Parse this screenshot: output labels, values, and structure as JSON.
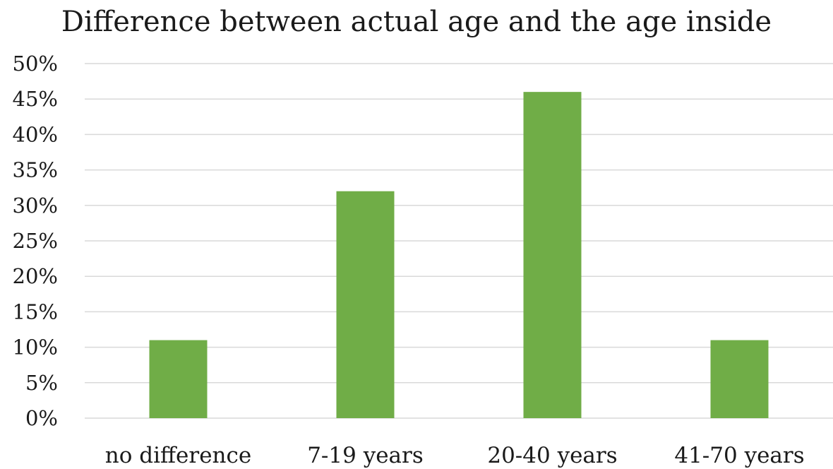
{
  "chart_data": {
    "type": "bar",
    "title": "Difference between actual age and the age inside",
    "xlabel": "",
    "ylabel": "",
    "categories": [
      "no difference",
      "7-19 years",
      "20-40 years",
      "41-70 years"
    ],
    "values": [
      11,
      32,
      46,
      11
    ],
    "value_format": "percent",
    "ylim": [
      0,
      50
    ],
    "yticks": [
      0,
      5,
      10,
      15,
      20,
      25,
      30,
      35,
      40,
      45,
      50
    ],
    "ytick_labels": [
      "0%",
      "5%",
      "10%",
      "15%",
      "20%",
      "25%",
      "30%",
      "35%",
      "40%",
      "45%",
      "50%"
    ],
    "grid": true,
    "legend": "none",
    "colors": {
      "bar": "#70AD47",
      "grid": "#D9D9D9",
      "text": "#1a1a1a"
    }
  }
}
